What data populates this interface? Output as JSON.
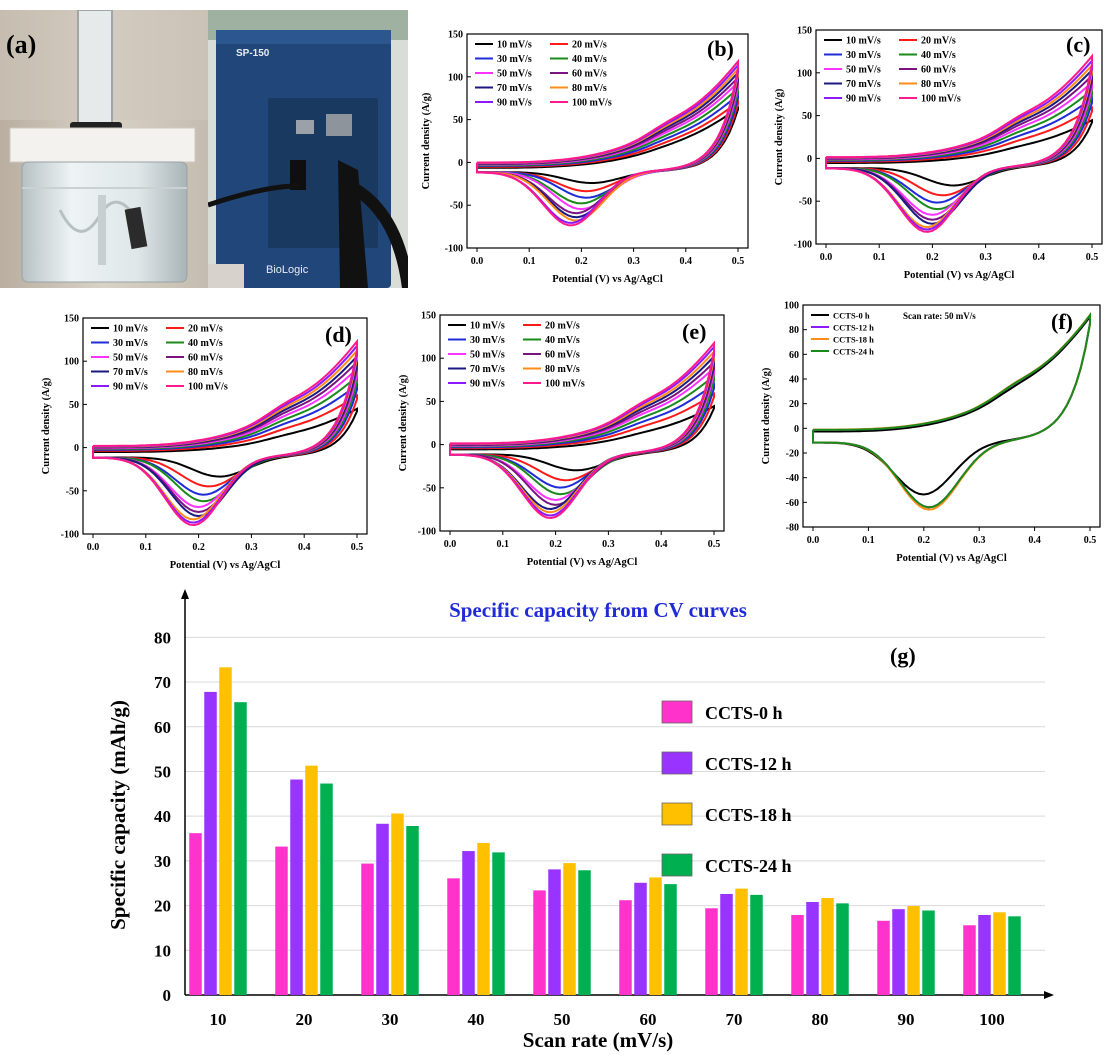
{
  "photos": {
    "panel_label": "(a)",
    "device_model": "SP-150",
    "device_brand": "BioLogic"
  },
  "cv_common": {
    "xlabel": "Potential (V) vs Ag/AgCl",
    "ylabel": "Current density (A/g)",
    "xticks": [
      "0.0",
      "0.1",
      "0.2",
      "0.3",
      "0.4",
      "0.5"
    ],
    "scan_rates": [
      "10 mV/s",
      "20 mV/s",
      "30 mV/s",
      "40 mV/s",
      "50 mV/s",
      "60 mV/s",
      "70 mV/s",
      "80 mV/s",
      "90 mV/s",
      "100 mV/s"
    ],
    "colors": [
      "#000000",
      "#ff1a1a",
      "#1f2bd6",
      "#1a8a1a",
      "#ff33ff",
      "#7a1480",
      "#1a1a80",
      "#ff8c1a",
      "#8c1aff",
      "#ff1a8c"
    ]
  },
  "chart_data": [
    {
      "type": "line",
      "panel": "(b)",
      "xlim": [
        0,
        0.5
      ],
      "ylim": [
        -100,
        150
      ],
      "yticks": [
        "-100",
        "-50",
        "0",
        "50",
        "100",
        "150"
      ],
      "series": [
        {
          "name": "10 mV/s",
          "peak_anodic": 62,
          "peak_cathodic": -14,
          "cath_pos": 0.22
        },
        {
          "name": "20 mV/s",
          "peak_anodic": 68,
          "peak_cathodic": -24,
          "cath_pos": 0.21
        },
        {
          "name": "30 mV/s",
          "peak_anodic": 75,
          "peak_cathodic": -32,
          "cath_pos": 0.21
        },
        {
          "name": "40 mV/s",
          "peak_anodic": 82,
          "peak_cathodic": -39,
          "cath_pos": 0.2
        },
        {
          "name": "50 mV/s",
          "peak_anodic": 88,
          "peak_cathodic": -46,
          "cath_pos": 0.2
        },
        {
          "name": "60 mV/s",
          "peak_anodic": 93,
          "peak_cathodic": -51,
          "cath_pos": 0.19
        },
        {
          "name": "70 mV/s",
          "peak_anodic": 98,
          "peak_cathodic": -56,
          "cath_pos": 0.19
        },
        {
          "name": "80 mV/s",
          "peak_anodic": 102,
          "peak_cathodic": -60,
          "cath_pos": 0.19
        },
        {
          "name": "90 mV/s",
          "peak_anodic": 106,
          "peak_cathodic": -63,
          "cath_pos": 0.18
        },
        {
          "name": "100 mV/s",
          "peak_anodic": 110,
          "peak_cathodic": -66,
          "cath_pos": 0.18
        }
      ]
    },
    {
      "type": "line",
      "panel": "(c)",
      "xlim": [
        0,
        0.5
      ],
      "ylim": [
        -100,
        150
      ],
      "yticks": [
        "-100",
        "-50",
        "0",
        "50",
        "100",
        "150"
      ],
      "series": [
        {
          "name": "10 mV/s",
          "peak_anodic": 42,
          "peak_cathodic": -22,
          "cath_pos": 0.24
        },
        {
          "name": "20 mV/s",
          "peak_anodic": 55,
          "peak_cathodic": -34,
          "cath_pos": 0.22
        },
        {
          "name": "30 mV/s",
          "peak_anodic": 65,
          "peak_cathodic": -43,
          "cath_pos": 0.21
        },
        {
          "name": "40 mV/s",
          "peak_anodic": 74,
          "peak_cathodic": -51,
          "cath_pos": 0.21
        },
        {
          "name": "50 mV/s",
          "peak_anodic": 82,
          "peak_cathodic": -58,
          "cath_pos": 0.2
        },
        {
          "name": "60 mV/s",
          "peak_anodic": 89,
          "peak_cathodic": -64,
          "cath_pos": 0.2
        },
        {
          "name": "70 mV/s",
          "peak_anodic": 95,
          "peak_cathodic": -69,
          "cath_pos": 0.2
        },
        {
          "name": "80 mV/s",
          "peak_anodic": 100,
          "peak_cathodic": -73,
          "cath_pos": 0.19
        },
        {
          "name": "90 mV/s",
          "peak_anodic": 105,
          "peak_cathodic": -76,
          "cath_pos": 0.19
        },
        {
          "name": "100 mV/s",
          "peak_anodic": 110,
          "peak_cathodic": -79,
          "cath_pos": 0.19
        }
      ]
    },
    {
      "type": "line",
      "panel": "(d)",
      "xlim": [
        0,
        0.5
      ],
      "ylim": [
        -100,
        150
      ],
      "yticks": [
        "-100",
        "-50",
        "0",
        "50",
        "100",
        "150"
      ],
      "series": [
        {
          "name": "10 mV/s",
          "peak_anodic": 42,
          "peak_cathodic": -24,
          "cath_pos": 0.24
        },
        {
          "name": "20 mV/s",
          "peak_anodic": 56,
          "peak_cathodic": -36,
          "cath_pos": 0.22
        },
        {
          "name": "30 mV/s",
          "peak_anodic": 67,
          "peak_cathodic": -46,
          "cath_pos": 0.21
        },
        {
          "name": "40 mV/s",
          "peak_anodic": 76,
          "peak_cathodic": -54,
          "cath_pos": 0.21
        },
        {
          "name": "50 mV/s",
          "peak_anodic": 84,
          "peak_cathodic": -61,
          "cath_pos": 0.2
        },
        {
          "name": "60 mV/s",
          "peak_anodic": 91,
          "peak_cathodic": -67,
          "cath_pos": 0.2
        },
        {
          "name": "70 mV/s",
          "peak_anodic": 97,
          "peak_cathodic": -72,
          "cath_pos": 0.2
        },
        {
          "name": "80 mV/s",
          "peak_anodic": 103,
          "peak_cathodic": -76,
          "cath_pos": 0.19
        },
        {
          "name": "90 mV/s",
          "peak_anodic": 108,
          "peak_cathodic": -80,
          "cath_pos": 0.19
        },
        {
          "name": "100 mV/s",
          "peak_anodic": 113,
          "peak_cathodic": -83,
          "cath_pos": 0.19
        }
      ]
    },
    {
      "type": "line",
      "panel": "(e)",
      "xlim": [
        0,
        0.5
      ],
      "ylim": [
        -100,
        150
      ],
      "yticks": [
        "-100",
        "-50",
        "0",
        "50",
        "100",
        "150"
      ],
      "series": [
        {
          "name": "10 mV/s",
          "peak_anodic": 42,
          "peak_cathodic": -20,
          "cath_pos": 0.24
        },
        {
          "name": "20 mV/s",
          "peak_anodic": 55,
          "peak_cathodic": -32,
          "cath_pos": 0.22
        },
        {
          "name": "30 mV/s",
          "peak_anodic": 65,
          "peak_cathodic": -41,
          "cath_pos": 0.21
        },
        {
          "name": "40 mV/s",
          "peak_anodic": 74,
          "peak_cathodic": -49,
          "cath_pos": 0.21
        },
        {
          "name": "50 mV/s",
          "peak_anodic": 82,
          "peak_cathodic": -56,
          "cath_pos": 0.2
        },
        {
          "name": "60 mV/s",
          "peak_anodic": 88,
          "peak_cathodic": -62,
          "cath_pos": 0.2
        },
        {
          "name": "70 mV/s",
          "peak_anodic": 94,
          "peak_cathodic": -67,
          "cath_pos": 0.19
        },
        {
          "name": "80 mV/s",
          "peak_anodic": 99,
          "peak_cathodic": -71,
          "cath_pos": 0.19
        },
        {
          "name": "90 mV/s",
          "peak_anodic": 104,
          "peak_cathodic": -75,
          "cath_pos": 0.19
        },
        {
          "name": "100 mV/s",
          "peak_anodic": 108,
          "peak_cathodic": -78,
          "cath_pos": 0.19
        }
      ]
    },
    {
      "type": "line",
      "panel": "(f)",
      "annotation": "Scan rate: 50 mV/s",
      "xlim": [
        0,
        0.5
      ],
      "ylim": [
        -80,
        100
      ],
      "yticks": [
        "-80",
        "-60",
        "-40",
        "-20",
        "0",
        "20",
        "40",
        "60",
        "80",
        "100"
      ],
      "series": [
        {
          "name": "CCTS-0 h",
          "color": "#000000",
          "peak_anodic": 85,
          "peak_cathodic": -45,
          "cath_pos": 0.2
        },
        {
          "name": "CCTS-12 h",
          "color": "#8c1aff",
          "peak_anodic": 85,
          "peak_cathodic": -56,
          "cath_pos": 0.21
        },
        {
          "name": "CCTS-18 h",
          "color": "#ff8c1a",
          "peak_anodic": 85,
          "peak_cathodic": -58,
          "cath_pos": 0.21
        },
        {
          "name": "CCTS-24 h",
          "color": "#1a8a1a",
          "peak_anodic": 85,
          "peak_cathodic": -56,
          "cath_pos": 0.21
        }
      ]
    },
    {
      "type": "bar",
      "panel": "(g)",
      "title": "Specific capacity from CV curves",
      "xlabel": "Scan rate (mV/s)",
      "ylabel": "Specific capacity (mAh/g)",
      "ylim": [
        0,
        85
      ],
      "yticks": [
        "0",
        "10",
        "20",
        "30",
        "40",
        "50",
        "60",
        "70",
        "80"
      ],
      "grid": true,
      "legend_position": "right",
      "categories": [
        "10",
        "20",
        "30",
        "40",
        "50",
        "60",
        "70",
        "80",
        "90",
        "100"
      ],
      "series": [
        {
          "name": "CCTS-0 h",
          "color": "#ff33cc",
          "values": [
            36.2,
            33.2,
            29.4,
            26.1,
            23.4,
            21.2,
            19.4,
            17.9,
            16.6,
            15.6
          ]
        },
        {
          "name": "CCTS-12 h",
          "color": "#9933ff",
          "values": [
            67.8,
            48.2,
            38.3,
            32.2,
            28.1,
            25.1,
            22.6,
            20.8,
            19.2,
            17.9
          ]
        },
        {
          "name": "CCTS-18 h",
          "color": "#ffc000",
          "values": [
            73.3,
            51.3,
            40.6,
            34.0,
            29.5,
            26.3,
            23.8,
            21.7,
            19.9,
            18.5
          ]
        },
        {
          "name": "CCTS-24 h",
          "color": "#00b050",
          "values": [
            65.5,
            47.3,
            37.8,
            31.9,
            27.9,
            24.8,
            22.4,
            20.5,
            18.9,
            17.6
          ]
        }
      ]
    }
  ]
}
